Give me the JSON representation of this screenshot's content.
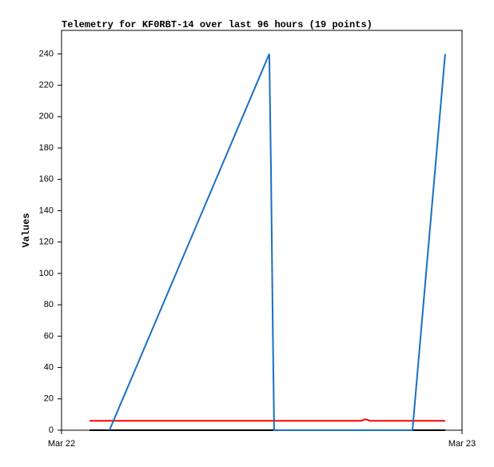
{
  "chart_data": {
    "type": "line",
    "title": "Telemetry for KF0RBT-14 over last 96 hours (19 points)",
    "y_label": "Values",
    "xlim": [
      0,
      24
    ],
    "xticks": [
      {
        "value": 0,
        "label": "Mar 22"
      },
      {
        "value": 24,
        "label": "Mar 23"
      }
    ],
    "ylim": [
      0,
      255
    ],
    "yticks": [
      0,
      20,
      40,
      60,
      80,
      100,
      120,
      140,
      160,
      180,
      200,
      220,
      240
    ],
    "grid": false,
    "series": [
      {
        "color": "#ff0000",
        "x": [
          1.68,
          17.95,
          18.2,
          18.5,
          22.99
        ],
        "values": [
          6,
          6,
          7,
          6,
          6
        ]
      },
      {
        "color": "#000000",
        "x": [
          1.68,
          22.99
        ],
        "values": [
          0,
          0
        ]
      },
      {
        "color": "#1a6fc4",
        "x": [
          2.87,
          12.45,
          12.55,
          12.6,
          12.65,
          12.74,
          21.03,
          22.99
        ],
        "values": [
          0,
          240,
          167,
          121,
          73,
          0,
          0,
          240
        ]
      }
    ]
  }
}
